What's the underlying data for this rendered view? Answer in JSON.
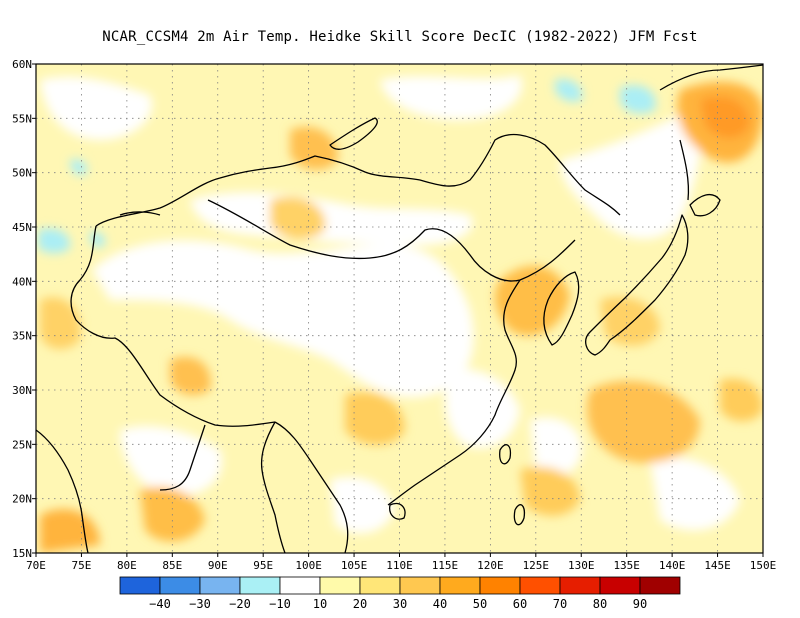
{
  "title": "NCAR_CCSM4  2m Air Temp. Heidke Skill Score DecIC (1982-2022) JFM Fcst",
  "map": {
    "lon_range": [
      70,
      150
    ],
    "lat_range": [
      15,
      60
    ],
    "lon_ticks": [
      "70E",
      "75E",
      "80E",
      "85E",
      "90E",
      "95E",
      "100E",
      "105E",
      "110E",
      "115E",
      "120E",
      "125E",
      "130E",
      "135E",
      "140E",
      "145E",
      "150E"
    ],
    "lat_ticks": [
      "15N",
      "20N",
      "25N",
      "30N",
      "35N",
      "40N",
      "45N",
      "50N",
      "55N",
      "60N"
    ],
    "grid": "dotted",
    "palette": {
      "neg40": "#1e64dc",
      "neg30": "#3c8ce6",
      "neg20": "#78b4f0",
      "neg10": "#aaf0f5",
      "zero": "#ffffff",
      "pos10": "#fffaaa",
      "pos20": "#ffe678",
      "pos30": "#ffc850",
      "pos40": "#ffaa1e",
      "pos50": "#ff8200",
      "pos60": "#ff5000",
      "pos70": "#e61e00",
      "pos80": "#c80000",
      "pos90": "#a00000"
    }
  },
  "colorbar": {
    "colors": [
      "#1e64dc",
      "#3c8ce6",
      "#78b4f0",
      "#aaf0f5",
      "#ffffff",
      "#fffaaa",
      "#ffe678",
      "#ffc850",
      "#ffaa1e",
      "#ff8200",
      "#ff5000",
      "#e61e00",
      "#c80000",
      "#a00000"
    ],
    "labels": [
      "−40",
      "−30",
      "−20",
      "−10",
      "10",
      "20",
      "30",
      "40",
      "50",
      "60",
      "70",
      "80",
      "90"
    ]
  }
}
